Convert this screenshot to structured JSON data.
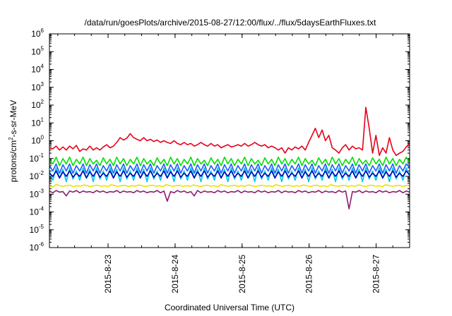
{
  "chart_data": {
    "type": "line",
    "title": "/data/run/goesPlots/archive/2015-08-27/12:00/flux/../flux/5daysEarthFluxes.txt",
    "xlabel": "Coordinated Universal Time (UTC)",
    "ylabel": {
      "pre": "protons/cm",
      "sup": "2",
      "post": "-s-sr-MeV"
    },
    "yscale": "log",
    "ylim": [
      1e-06,
      1000000.0
    ],
    "y_ticks": [
      {
        "base": "10",
        "exp": "6"
      },
      {
        "base": "10",
        "exp": "5"
      },
      {
        "base": "10",
        "exp": "4"
      },
      {
        "base": "10",
        "exp": "3"
      },
      {
        "base": "10",
        "exp": "2"
      },
      {
        "base": "10",
        "exp": "1"
      },
      {
        "base": "10",
        "exp": "0"
      },
      {
        "base": "10",
        "exp": "-1"
      },
      {
        "base": "10",
        "exp": "-2"
      },
      {
        "base": "10",
        "exp": "-3"
      },
      {
        "base": "10",
        "exp": "-4"
      },
      {
        "base": "10",
        "exp": "-5"
      },
      {
        "base": "10",
        "exp": "-6"
      }
    ],
    "xlim": [
      "2015-08-22T03:00",
      "2015-08-27T12:00"
    ],
    "x_ticks": [
      "2015-8-23",
      "2015-8-24",
      "2015-8-25",
      "2015-8-26",
      "2015-8-27"
    ],
    "grid": false,
    "legend": "none",
    "series": [
      {
        "color": "#e8001c",
        "values": [
          0.4,
          0.35,
          0.5,
          0.3,
          0.45,
          0.3,
          0.5,
          0.35,
          0.55,
          0.25,
          0.35,
          0.3,
          0.5,
          0.3,
          0.4,
          0.3,
          0.45,
          0.6,
          0.4,
          0.5,
          0.8,
          1.5,
          1.1,
          1.4,
          2.5,
          1.5,
          1.2,
          1.0,
          1.5,
          1.0,
          1.2,
          0.9,
          1.1,
          0.8,
          1.0,
          0.8,
          0.7,
          1.0,
          0.7,
          0.6,
          0.8,
          0.6,
          0.7,
          0.5,
          0.6,
          0.8,
          0.6,
          0.5,
          0.7,
          0.5,
          0.6,
          0.4,
          0.5,
          0.6,
          0.45,
          0.5,
          0.6,
          0.5,
          0.7,
          0.5,
          0.6,
          0.8,
          0.6,
          0.5,
          0.6,
          0.4,
          0.5,
          0.4,
          0.3,
          0.4,
          0.2,
          0.4,
          0.3,
          0.45,
          0.35,
          0.5,
          0.3,
          0.8,
          2.0,
          5.0,
          1.5,
          4.0,
          1.0,
          2.0,
          0.4,
          0.3,
          0.2,
          0.4,
          0.6,
          0.3,
          0.5,
          0.35,
          0.4,
          0.3,
          75,
          5.0,
          0.2,
          2.0,
          0.15,
          0.4,
          0.2,
          1.5,
          0.3,
          0.15,
          0.2,
          0.25,
          0.45,
          0.7
        ]
      },
      {
        "color": "#00e000",
        "values": [
          0.08,
          0.05,
          0.12,
          0.04,
          0.1,
          0.05,
          0.12,
          0.04,
          0.09,
          0.05,
          0.12,
          0.04,
          0.1,
          0.05,
          0.08,
          0.04,
          0.11,
          0.05,
          0.09,
          0.04,
          0.12,
          0.05,
          0.1,
          0.04,
          0.09,
          0.05,
          0.12,
          0.04,
          0.1,
          0.05,
          0.08,
          0.04,
          0.11,
          0.05,
          0.09,
          0.04,
          0.12,
          0.05,
          0.1,
          0.04,
          0.09,
          0.05,
          0.12,
          0.04,
          0.1,
          0.05,
          0.08,
          0.04,
          0.11,
          0.05,
          0.09,
          0.04,
          0.12,
          0.05,
          0.1,
          0.04,
          0.09,
          0.05,
          0.12,
          0.04,
          0.1,
          0.05,
          0.08,
          0.04,
          0.11,
          0.05,
          0.09,
          0.04,
          0.12,
          0.05,
          0.1,
          0.04,
          0.09,
          0.05,
          0.12,
          0.04,
          0.1,
          0.05,
          0.08,
          0.04,
          0.11,
          0.05,
          0.09,
          0.04,
          0.12,
          0.05,
          0.1,
          0.04,
          0.09,
          0.05,
          0.12,
          0.04,
          0.1,
          0.05,
          0.08,
          0.04,
          0.11,
          0.05,
          0.09,
          0.04,
          0.12,
          0.05,
          0.1,
          0.04,
          0.09,
          0.05,
          0.12,
          0.06
        ]
      },
      {
        "color": "#00c8e8",
        "values": [
          0.02,
          0.006,
          0.03,
          0.008,
          0.025,
          0.005,
          0.03,
          0.007,
          0.02,
          0.006,
          0.03,
          0.008,
          0.025,
          0.005,
          0.03,
          0.007,
          0.02,
          0.006,
          0.03,
          0.008,
          0.025,
          0.005,
          0.03,
          0.007,
          0.02,
          0.006,
          0.03,
          0.008,
          0.025,
          0.005,
          0.03,
          0.007,
          0.02,
          0.006,
          0.03,
          0.008,
          0.025,
          0.005,
          0.03,
          0.007,
          0.02,
          0.006,
          0.03,
          0.008,
          0.025,
          0.005,
          0.03,
          0.007,
          0.02,
          0.006,
          0.03,
          0.008,
          0.025,
          0.005,
          0.03,
          0.007,
          0.02,
          0.006,
          0.03,
          0.008,
          0.025,
          0.005,
          0.03,
          0.007,
          0.02,
          0.006,
          0.03,
          0.008,
          0.025,
          0.005,
          0.03,
          0.007,
          0.02,
          0.006,
          0.03,
          0.008,
          0.025,
          0.005,
          0.03,
          0.007,
          0.02,
          0.006,
          0.03,
          0.008,
          0.025,
          0.005,
          0.03,
          0.007,
          0.02,
          0.006,
          0.03,
          0.008,
          0.025,
          0.005,
          0.03,
          0.007,
          0.02,
          0.006,
          0.03,
          0.008,
          0.025,
          0.005,
          0.03,
          0.007,
          0.02,
          0.006,
          0.03,
          0.01
        ]
      },
      {
        "color": "#1e5aff",
        "values": [
          0.04,
          0.02,
          0.05,
          0.015,
          0.045,
          0.02,
          0.05,
          0.015,
          0.04,
          0.02,
          0.05,
          0.015,
          0.045,
          0.02,
          0.05,
          0.015,
          0.04,
          0.02,
          0.05,
          0.015,
          0.045,
          0.02,
          0.05,
          0.015,
          0.04,
          0.02,
          0.05,
          0.015,
          0.045,
          0.02,
          0.05,
          0.015,
          0.04,
          0.02,
          0.05,
          0.015,
          0.045,
          0.02,
          0.05,
          0.015,
          0.04,
          0.02,
          0.05,
          0.015,
          0.045,
          0.02,
          0.05,
          0.015,
          0.04,
          0.02,
          0.05,
          0.015,
          0.045,
          0.02,
          0.05,
          0.015,
          0.04,
          0.02,
          0.05,
          0.015,
          0.045,
          0.02,
          0.05,
          0.015,
          0.04,
          0.02,
          0.05,
          0.015,
          0.045,
          0.02,
          0.05,
          0.015,
          0.04,
          0.02,
          0.05,
          0.015,
          0.045,
          0.02,
          0.05,
          0.015,
          0.04,
          0.02,
          0.05,
          0.015,
          0.045,
          0.02,
          0.05,
          0.015,
          0.04,
          0.02,
          0.05,
          0.015,
          0.045,
          0.02,
          0.05,
          0.015,
          0.04,
          0.02,
          0.05,
          0.015,
          0.045,
          0.02,
          0.05,
          0.015,
          0.04,
          0.02,
          0.05,
          0.03
        ]
      },
      {
        "color": "#0000b4",
        "values": [
          0.015,
          0.01,
          0.02,
          0.008,
          0.018,
          0.01,
          0.02,
          0.009,
          0.015,
          0.01,
          0.02,
          0.008,
          0.018,
          0.01,
          0.02,
          0.009,
          0.015,
          0.01,
          0.02,
          0.008,
          0.018,
          0.01,
          0.02,
          0.009,
          0.015,
          0.01,
          0.02,
          0.008,
          0.018,
          0.01,
          0.02,
          0.009,
          0.015,
          0.01,
          0.02,
          0.008,
          0.018,
          0.01,
          0.02,
          0.009,
          0.015,
          0.01,
          0.02,
          0.008,
          0.018,
          0.01,
          0.02,
          0.009,
          0.015,
          0.01,
          0.02,
          0.008,
          0.018,
          0.01,
          0.02,
          0.009,
          0.015,
          0.01,
          0.02,
          0.008,
          0.018,
          0.01,
          0.02,
          0.009,
          0.015,
          0.01,
          0.02,
          0.008,
          0.018,
          0.01,
          0.02,
          0.009,
          0.015,
          0.01,
          0.02,
          0.008,
          0.018,
          0.01,
          0.02,
          0.009,
          0.015,
          0.01,
          0.02,
          0.008,
          0.018,
          0.01,
          0.02,
          0.009,
          0.015,
          0.01,
          0.02,
          0.008,
          0.018,
          0.01,
          0.02,
          0.009,
          0.015,
          0.01,
          0.02,
          0.008,
          0.018,
          0.01,
          0.02,
          0.009,
          0.015,
          0.01,
          0.02,
          0.012
        ]
      },
      {
        "color": "#f0e000",
        "values": [
          0.003,
          0.0025,
          0.0035,
          0.003,
          0.0028,
          0.003,
          0.0032,
          0.0026,
          0.003,
          0.0028,
          0.0033,
          0.003,
          0.0027,
          0.003,
          0.0032,
          0.0028,
          0.003,
          0.0026,
          0.0034,
          0.003,
          0.0028,
          0.003,
          0.0031,
          0.0027,
          0.003,
          0.0028,
          0.0033,
          0.003,
          0.0027,
          0.003,
          0.0032,
          0.0028,
          0.003,
          0.0026,
          0.0034,
          0.003,
          0.0028,
          0.003,
          0.0031,
          0.0027,
          0.003,
          0.0028,
          0.0033,
          0.003,
          0.0027,
          0.003,
          0.0032,
          0.0028,
          0.003,
          0.0026,
          0.0034,
          0.003,
          0.0028,
          0.003,
          0.0031,
          0.0027,
          0.003,
          0.0028,
          0.0033,
          0.003,
          0.0027,
          0.003,
          0.0032,
          0.0028,
          0.003,
          0.0026,
          0.0034,
          0.003,
          0.0028,
          0.003,
          0.0031,
          0.0027,
          0.003,
          0.0028,
          0.0033,
          0.003,
          0.0027,
          0.003,
          0.0032,
          0.0028,
          0.003,
          0.0026,
          0.0034,
          0.003,
          0.0028,
          0.003,
          0.0031,
          0.0027,
          0.003,
          0.0028,
          0.0033,
          0.003,
          0.0027,
          0.003,
          0.0032,
          0.0028,
          0.003,
          0.0026,
          0.0034,
          0.003,
          0.0028,
          0.003,
          0.0031,
          0.0027,
          0.003,
          0.003
        ]
      },
      {
        "color": "#8c1e6e",
        "values": [
          0.0015,
          0.0012,
          0.0016,
          0.0013,
          0.0014,
          0.0008,
          0.0015,
          0.0013,
          0.0016,
          0.0012,
          0.0015,
          0.0013,
          0.0014,
          0.0012,
          0.0016,
          0.0013,
          0.0015,
          0.0012,
          0.0014,
          0.0013,
          0.0016,
          0.0012,
          0.0015,
          0.0013,
          0.0014,
          0.0012,
          0.0016,
          0.0013,
          0.0015,
          0.0012,
          0.0014,
          0.0013,
          0.0016,
          0.0012,
          0.0015,
          0.0004,
          0.0014,
          0.0012,
          0.0016,
          0.0013,
          0.0015,
          0.0012,
          0.0014,
          0.0008,
          0.0016,
          0.0012,
          0.0015,
          0.0013,
          0.0014,
          0.0012,
          0.0016,
          0.0013,
          0.0015,
          0.0012,
          0.0014,
          0.0013,
          0.0016,
          0.0012,
          0.0015,
          0.0013,
          0.0014,
          0.0012,
          0.0016,
          0.0013,
          0.0015,
          0.0012,
          0.0014,
          0.0013,
          0.0016,
          0.0012,
          0.0015,
          0.0013,
          0.0014,
          0.0012,
          0.0016,
          0.0013,
          0.0015,
          0.0012,
          0.0014,
          0.0013,
          0.0016,
          0.0012,
          0.0015,
          0.0013,
          0.0014,
          0.0012,
          0.0016,
          0.0013,
          0.0015,
          0.00015,
          0.0014,
          0.0013,
          0.0016,
          0.0012,
          0.0015,
          0.0013,
          0.0014,
          0.0012,
          0.0016,
          0.0013,
          0.0015,
          0.0012,
          0.0014,
          0.0013,
          0.0016,
          0.0012,
          0.0015,
          0.0013
        ]
      }
    ]
  }
}
